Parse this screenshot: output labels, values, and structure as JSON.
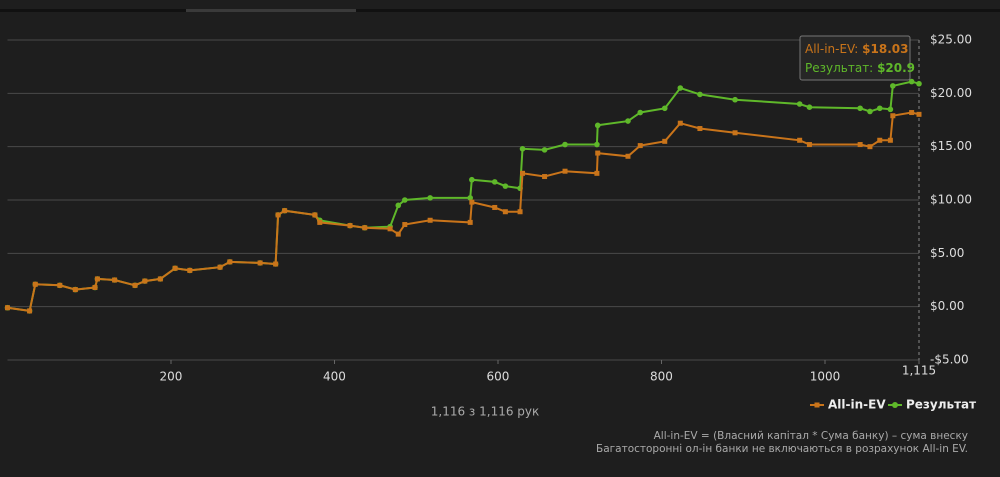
{
  "chart_data": {
    "type": "line",
    "x": [
      0,
      27,
      34,
      64,
      83,
      107,
      110,
      131,
      156,
      168,
      187,
      205,
      223,
      260,
      272,
      309,
      328,
      331,
      339,
      376,
      382,
      419,
      437,
      468,
      478,
      486,
      517,
      566,
      568,
      596,
      609,
      627,
      630,
      657,
      682,
      721,
      722,
      759,
      774,
      804,
      823,
      847,
      890,
      969,
      981,
      1043,
      1055,
      1067,
      1080,
      1083,
      1106,
      1115
    ],
    "series": [
      {
        "name": "All-in-EV",
        "color": "#c9741a",
        "marker": "square",
        "values": [
          -0.1,
          -0.4,
          2.1,
          2.0,
          1.6,
          1.8,
          2.6,
          2.5,
          2.0,
          2.4,
          2.6,
          3.6,
          3.4,
          3.7,
          4.2,
          4.1,
          4.0,
          8.6,
          9.0,
          8.6,
          7.9,
          7.6,
          7.4,
          7.3,
          6.8,
          7.7,
          8.1,
          7.9,
          9.8,
          9.3,
          8.9,
          8.9,
          12.5,
          12.2,
          12.7,
          12.5,
          14.4,
          14.1,
          15.1,
          15.5,
          17.2,
          16.7,
          16.3,
          15.6,
          15.2,
          15.2,
          15.0,
          15.6,
          15.6,
          17.9,
          18.2,
          18.03
        ]
      },
      {
        "name": "Результат",
        "color": "#5fb82a",
        "marker": "circle",
        "values": [
          -0.1,
          -0.4,
          2.1,
          2.0,
          1.6,
          1.8,
          2.6,
          2.5,
          2.0,
          2.4,
          2.6,
          3.6,
          3.4,
          3.7,
          4.2,
          4.1,
          4.0,
          8.6,
          9.0,
          8.6,
          8.1,
          7.6,
          7.4,
          7.5,
          9.5,
          10.0,
          10.2,
          10.2,
          11.9,
          11.7,
          11.3,
          11.1,
          14.8,
          14.7,
          15.2,
          15.2,
          17.0,
          17.4,
          18.2,
          18.6,
          20.5,
          19.9,
          19.4,
          19.0,
          18.7,
          18.6,
          18.3,
          18.6,
          18.5,
          20.7,
          21.1,
          20.9
        ]
      }
    ],
    "xlim": [
      0,
      1115
    ],
    "xticks": [
      200,
      400,
      600,
      800,
      1000,
      {
        "value": 1115,
        "label": "1,115"
      }
    ],
    "ylim": [
      -5,
      25
    ],
    "yticks": [
      {
        "value": 25,
        "label": "$25.00"
      },
      {
        "value": 20,
        "label": "$20.00"
      },
      {
        "value": 15,
        "label": "$15.00"
      },
      {
        "value": 10,
        "label": "$10.00"
      },
      {
        "value": 5,
        "label": "$5.00"
      },
      {
        "value": 0,
        "label": "$0.00"
      },
      {
        "value": -5,
        "label": "-$5.00"
      }
    ],
    "grid": true,
    "legend": "bottom-right",
    "tooltip": [
      {
        "label": "All-in-EV:",
        "value": "$18.03"
      },
      {
        "label": "Результат:",
        "value": "$20.9"
      }
    ],
    "hands_label": "1,116 з 1,116 рук",
    "notes": [
      "All-in-EV = (Власний капітал * Сума банку) – сума внеску",
      "Багатосторонні ол-ін банки не включаються в розрахунок All-in EV."
    ]
  }
}
